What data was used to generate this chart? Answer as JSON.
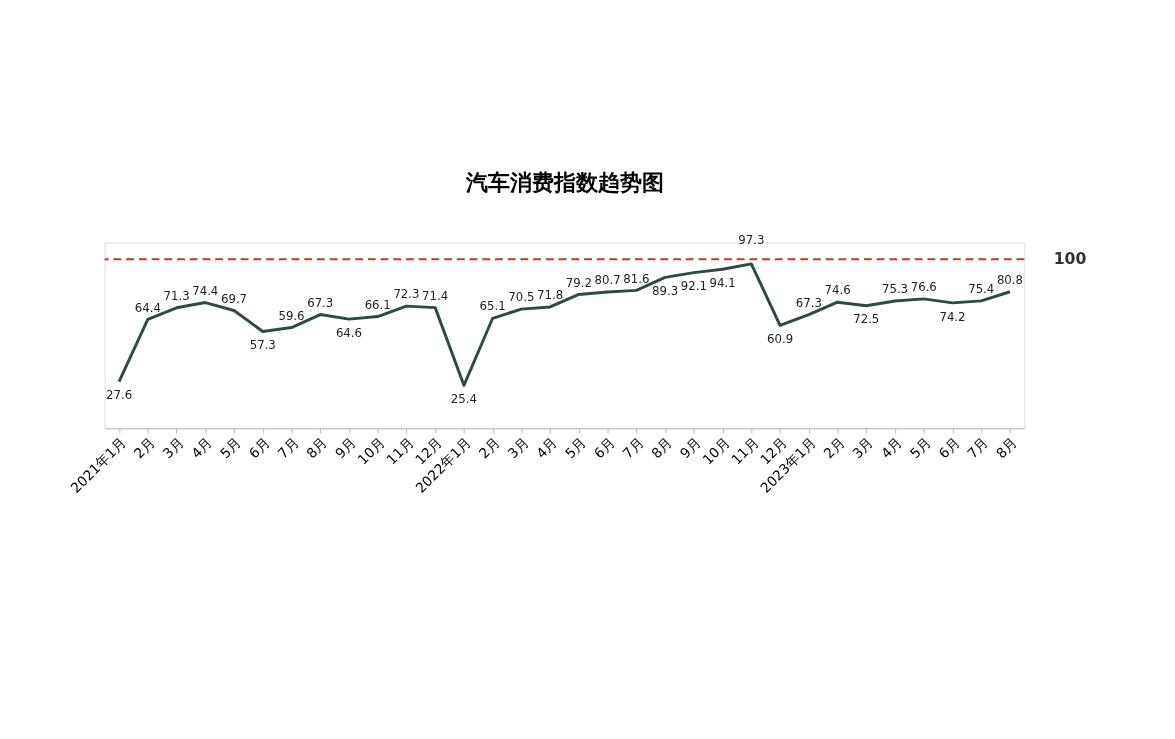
{
  "chart_data": {
    "type": "line",
    "title": "汽车消费指数趋势图",
    "categories": [
      "2021年1月",
      "2月",
      "3月",
      "4月",
      "5月",
      "6月",
      "7月",
      "8月",
      "9月",
      "10月",
      "11月",
      "12月",
      "2022年1月",
      "2月",
      "3月",
      "4月",
      "5月",
      "6月",
      "7月",
      "8月",
      "9月",
      "10月",
      "11月",
      "12月",
      "2023年1月",
      "2月",
      "3月",
      "4月",
      "5月",
      "6月",
      "7月",
      "8月"
    ],
    "series": [
      {
        "color": "#2d4a47",
        "values": [
          27.6,
          64.4,
          71.3,
          74.4,
          69.7,
          57.3,
          59.6,
          67.3,
          64.6,
          66.1,
          72.3,
          71.4,
          25.4,
          65.1,
          70.5,
          71.8,
          79.2,
          80.7,
          81.6,
          89.3,
          92.1,
          94.1,
          97.3,
          60.9,
          67.3,
          74.6,
          72.5,
          75.3,
          76.6,
          74.2,
          75.4,
          80.8
        ]
      }
    ],
    "ylim": [
      0,
      110
    ],
    "tick_labels": "x",
    "data_labels": true,
    "marker": "none",
    "line_style": "solid",
    "grid": false,
    "ref_lines": [
      {
        "axis": "y",
        "value": 100,
        "label": "100",
        "color": "#c0392b",
        "line_style": "dashed"
      }
    ]
  }
}
